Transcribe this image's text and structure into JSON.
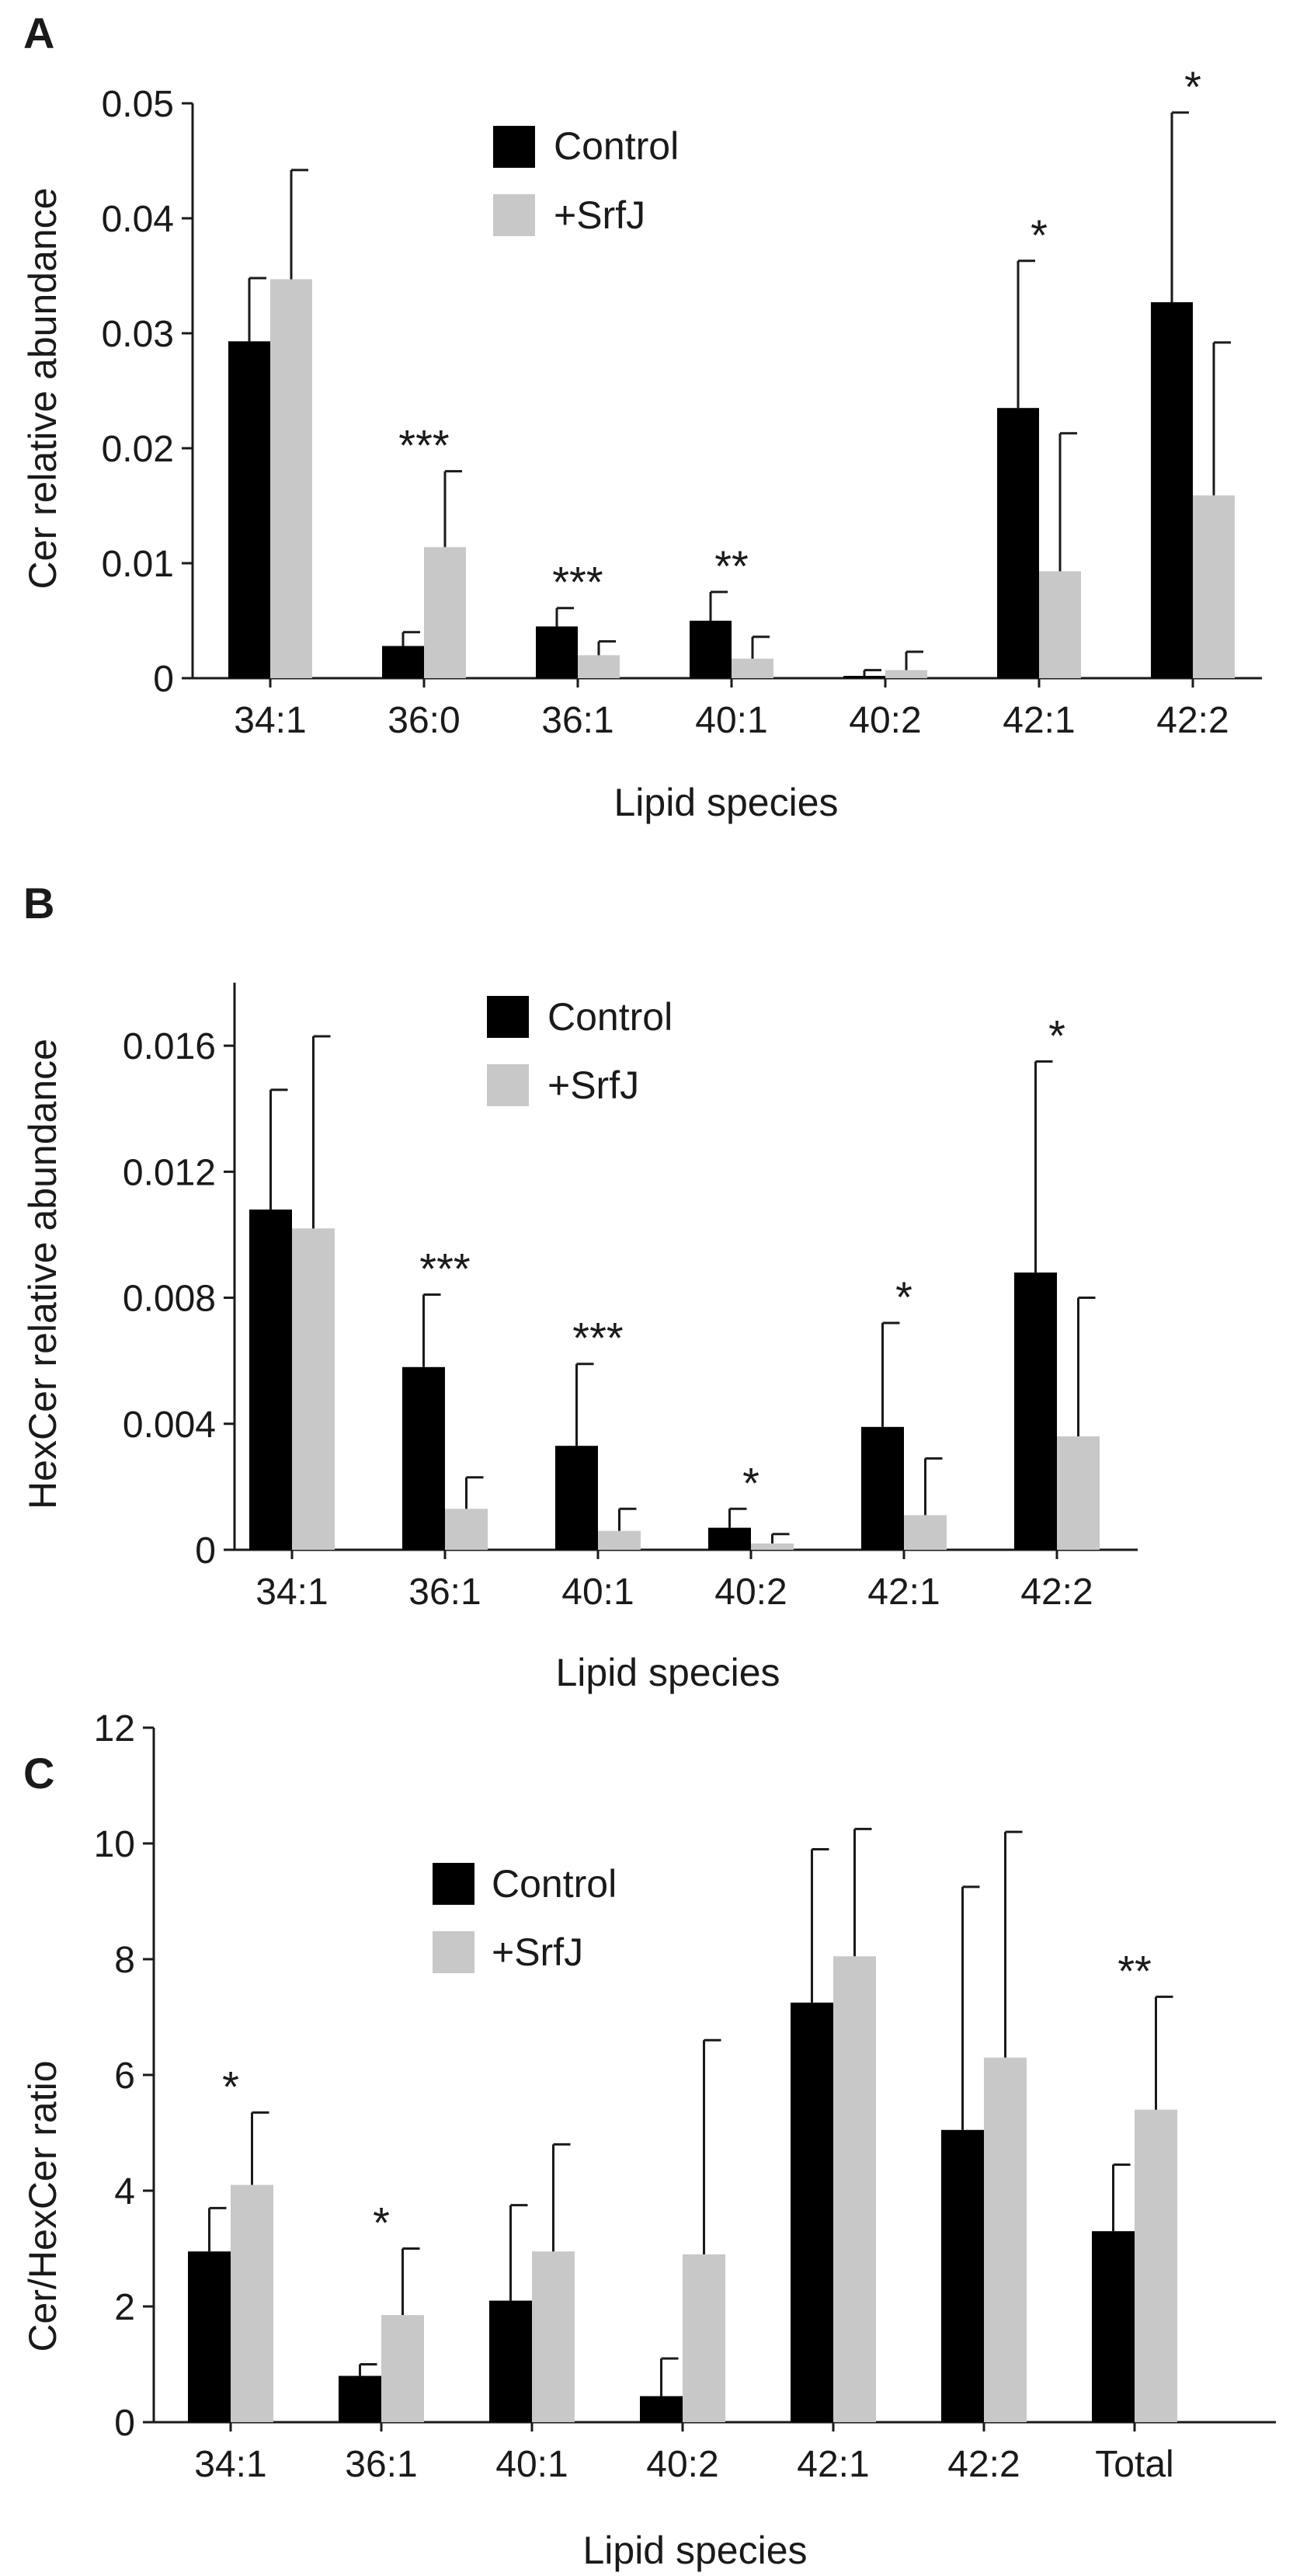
{
  "chart_data": [
    {
      "panel": "A",
      "type": "bar",
      "ylabel": "Cer relative abundance",
      "xlabel": "Lipid species",
      "ylim": [
        0,
        0.05
      ],
      "yticks": [
        0,
        0.01,
        0.02,
        0.03,
        0.04,
        0.05
      ],
      "ytick_labels": [
        "0",
        "0.01",
        "0.02",
        "0.03",
        "0.04",
        "0.05"
      ],
      "categories": [
        "34:1",
        "36:0",
        "36:1",
        "40:1",
        "40:2",
        "42:1",
        "42:2"
      ],
      "series": [
        {
          "name": "Control",
          "color": "#000000",
          "values": [
            0.0293,
            0.0028,
            0.0045,
            0.005,
            0.0002,
            0.0235,
            0.0327
          ],
          "errors": [
            0.0055,
            0.0012,
            0.0016,
            0.0025,
            0.0005,
            0.0128,
            0.0165
          ]
        },
        {
          "name": "+SrfJ",
          "color": "#c8c8c8",
          "values": [
            0.0347,
            0.0114,
            0.002,
            0.0017,
            0.0007,
            0.0093,
            0.0159
          ],
          "errors": [
            0.0095,
            0.0066,
            0.0012,
            0.0019,
            0.0016,
            0.012,
            0.0133
          ]
        }
      ],
      "significance": [
        "",
        "***",
        "***",
        "**",
        "",
        "*",
        "*"
      ]
    },
    {
      "panel": "B",
      "type": "bar",
      "ylabel": "HexCer relative abundance",
      "xlabel": "Lipid species",
      "ylim": [
        0,
        0.018
      ],
      "yticks": [
        0,
        0.004,
        0.008,
        0.012,
        0.016
      ],
      "ytick_labels": [
        "0",
        "0.004",
        "0.008",
        "0.012",
        "0.016"
      ],
      "categories": [
        "34:1",
        "36:1",
        "40:1",
        "40:2",
        "42:1",
        "42:2"
      ],
      "series": [
        {
          "name": "Control",
          "color": "#000000",
          "values": [
            0.0108,
            0.0058,
            0.0033,
            0.0007,
            0.0039,
            0.0088
          ],
          "errors": [
            0.0038,
            0.0023,
            0.0026,
            0.0006,
            0.0033,
            0.0067
          ]
        },
        {
          "name": "+SrfJ",
          "color": "#c8c8c8",
          "values": [
            0.0102,
            0.0013,
            0.0006,
            0.0002,
            0.0011,
            0.0036
          ],
          "errors": [
            0.0061,
            0.001,
            0.0007,
            0.0003,
            0.0018,
            0.0044
          ]
        }
      ],
      "significance": [
        "",
        "***",
        "***",
        "*",
        "*",
        "*"
      ]
    },
    {
      "panel": "C",
      "type": "bar",
      "ylabel": "Cer/HexCer ratio",
      "xlabel": "Lipid species",
      "ylim": [
        0,
        12
      ],
      "yticks": [
        0,
        2,
        4,
        6,
        8,
        10,
        12
      ],
      "ytick_labels": [
        "0",
        "2",
        "4",
        "6",
        "8",
        "10",
        "12"
      ],
      "categories": [
        "34:1",
        "36:1",
        "40:1",
        "40:2",
        "42:1",
        "42:2",
        "Total"
      ],
      "series": [
        {
          "name": "Control",
          "color": "#000000",
          "values": [
            2.95,
            0.8,
            2.1,
            0.45,
            7.25,
            5.05,
            3.3
          ],
          "errors": [
            0.75,
            0.2,
            1.65,
            0.65,
            2.65,
            4.2,
            1.15
          ]
        },
        {
          "name": "+SrfJ",
          "color": "#c8c8c8",
          "values": [
            4.1,
            1.85,
            2.95,
            2.9,
            8.05,
            6.3,
            5.4
          ],
          "errors": [
            1.25,
            1.15,
            1.85,
            3.7,
            2.2,
            3.9,
            1.95
          ]
        }
      ],
      "significance": [
        "*",
        "*",
        "",
        "",
        "",
        "",
        "**"
      ]
    }
  ]
}
